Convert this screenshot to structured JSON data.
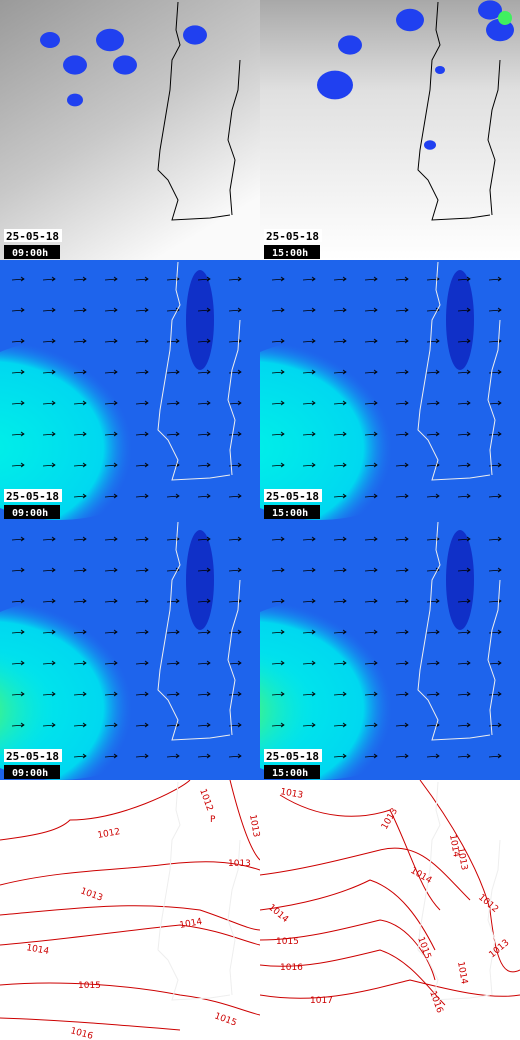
{
  "panels": [
    [
      {
        "date": "25-05-18",
        "time": "09:00h"
      },
      {
        "date": "25-05-18",
        "time": "15:00h"
      }
    ],
    [
      {
        "date": "25-05-18",
        "time": "09:00h"
      },
      {
        "date": "25-05-18",
        "time": "15:00h"
      }
    ],
    [
      {
        "date": "25-05-18",
        "time": "09:00h"
      },
      {
        "date": "25-05-18",
        "time": "15:00h"
      }
    ]
  ],
  "isobars": {
    "left": [
      1012,
      "P",
      1013,
      1012,
      1013,
      1013,
      1014,
      1014,
      1015,
      1015,
      1016
    ],
    "right": [
      1013,
      1013,
      1014,
      1014,
      1013,
      1012,
      1014,
      1015,
      1015,
      1016,
      1016,
      1014,
      1013,
      1017
    ]
  }
}
